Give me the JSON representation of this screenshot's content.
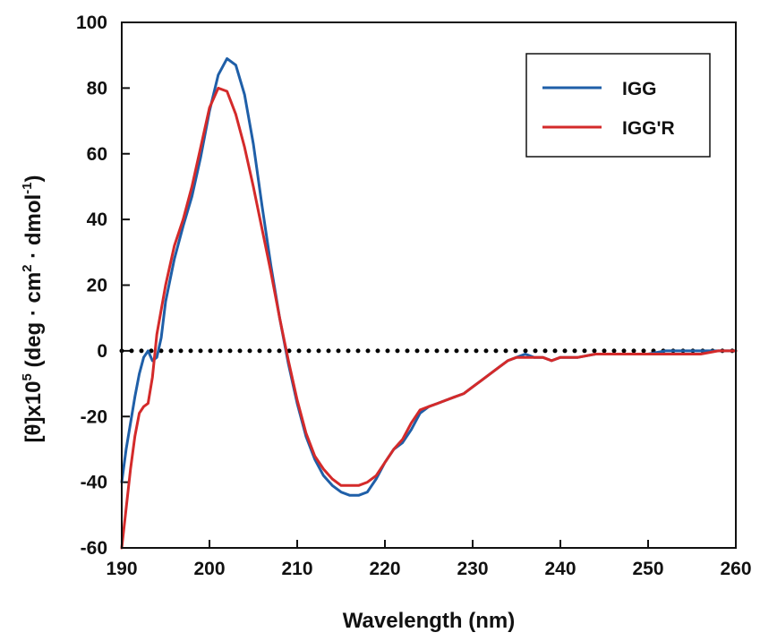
{
  "chart_data": {
    "type": "line",
    "xlabel": "Wavelength (nm)",
    "ylabel": {
      "prefix": "[θ]x10",
      "exp": "5",
      "part2": " (deg · cm",
      "exp2": "2",
      "part3": " · dmol",
      "exp3": "-1",
      "suffix": ")"
    },
    "xlim": [
      190,
      260
    ],
    "ylim": [
      -60,
      100
    ],
    "xticks": [
      "190",
      "200",
      "210",
      "220",
      "230",
      "240",
      "250",
      "260"
    ],
    "yticks": [
      "-60",
      "-40",
      "-20",
      "0",
      "20",
      "40",
      "60",
      "80",
      "100"
    ],
    "legend_position": "top-right",
    "reference_line": {
      "y": 0,
      "style": "dotted"
    },
    "series": [
      {
        "name": "IGG",
        "color": "#1f5fa8",
        "points": [
          [
            190,
            -40
          ],
          [
            190.5,
            -30
          ],
          [
            191,
            -22
          ],
          [
            191.5,
            -14
          ],
          [
            192,
            -7
          ],
          [
            192.5,
            -2
          ],
          [
            193,
            0
          ],
          [
            193.5,
            -3
          ],
          [
            194,
            -2
          ],
          [
            194.5,
            4
          ],
          [
            195,
            15
          ],
          [
            196,
            28
          ],
          [
            197,
            38
          ],
          [
            198,
            47
          ],
          [
            199,
            59
          ],
          [
            200,
            73
          ],
          [
            201,
            84
          ],
          [
            202,
            89
          ],
          [
            203,
            87
          ],
          [
            204,
            78
          ],
          [
            205,
            63
          ],
          [
            206,
            44
          ],
          [
            207,
            26
          ],
          [
            208,
            10
          ],
          [
            209,
            -4
          ],
          [
            210,
            -16
          ],
          [
            211,
            -26
          ],
          [
            212,
            -33
          ],
          [
            213,
            -38
          ],
          [
            214,
            -41
          ],
          [
            215,
            -43
          ],
          [
            216,
            -44
          ],
          [
            217,
            -44
          ],
          [
            218,
            -43
          ],
          [
            219,
            -39
          ],
          [
            220,
            -34
          ],
          [
            221,
            -30
          ],
          [
            222,
            -28
          ],
          [
            223,
            -24
          ],
          [
            224,
            -19
          ],
          [
            225,
            -17
          ],
          [
            226,
            -16
          ],
          [
            227,
            -15
          ],
          [
            228,
            -14
          ],
          [
            229,
            -13
          ],
          [
            230,
            -11
          ],
          [
            231,
            -9
          ],
          [
            232,
            -7
          ],
          [
            233,
            -5
          ],
          [
            234,
            -3
          ],
          [
            235,
            -2
          ],
          [
            236,
            -1
          ],
          [
            237,
            -2
          ],
          [
            238,
            -2
          ],
          [
            239,
            -3
          ],
          [
            240,
            -2
          ],
          [
            242,
            -2
          ],
          [
            244,
            -1
          ],
          [
            246,
            -1
          ],
          [
            248,
            -1
          ],
          [
            250,
            -1
          ],
          [
            252,
            0
          ],
          [
            254,
            0
          ],
          [
            256,
            0
          ],
          [
            258,
            0
          ],
          [
            260,
            0
          ]
        ]
      },
      {
        "name": "IGG'R",
        "color": "#d42a2a",
        "points": [
          [
            190,
            -60
          ],
          [
            190.5,
            -48
          ],
          [
            191,
            -36
          ],
          [
            191.5,
            -26
          ],
          [
            192,
            -19
          ],
          [
            192.5,
            -17
          ],
          [
            193,
            -16
          ],
          [
            193.5,
            -8
          ],
          [
            194,
            5
          ],
          [
            195,
            20
          ],
          [
            196,
            32
          ],
          [
            197,
            40
          ],
          [
            198,
            50
          ],
          [
            199,
            62
          ],
          [
            200,
            74
          ],
          [
            201,
            80
          ],
          [
            202,
            79
          ],
          [
            203,
            72
          ],
          [
            204,
            62
          ],
          [
            205,
            50
          ],
          [
            206,
            37
          ],
          [
            207,
            24
          ],
          [
            208,
            10
          ],
          [
            209,
            -3
          ],
          [
            210,
            -15
          ],
          [
            211,
            -25
          ],
          [
            212,
            -32
          ],
          [
            213,
            -36
          ],
          [
            214,
            -39
          ],
          [
            215,
            -41
          ],
          [
            216,
            -41
          ],
          [
            217,
            -41
          ],
          [
            218,
            -40
          ],
          [
            219,
            -38
          ],
          [
            220,
            -34
          ],
          [
            221,
            -30
          ],
          [
            222,
            -27
          ],
          [
            223,
            -22
          ],
          [
            224,
            -18
          ],
          [
            225,
            -17
          ],
          [
            226,
            -16
          ],
          [
            227,
            -15
          ],
          [
            228,
            -14
          ],
          [
            229,
            -13
          ],
          [
            230,
            -11
          ],
          [
            231,
            -9
          ],
          [
            232,
            -7
          ],
          [
            233,
            -5
          ],
          [
            234,
            -3
          ],
          [
            235,
            -2
          ],
          [
            236,
            -2
          ],
          [
            237,
            -2
          ],
          [
            238,
            -2
          ],
          [
            239,
            -3
          ],
          [
            240,
            -2
          ],
          [
            242,
            -2
          ],
          [
            244,
            -1
          ],
          [
            246,
            -1
          ],
          [
            248,
            -1
          ],
          [
            250,
            -1
          ],
          [
            252,
            -1
          ],
          [
            254,
            -1
          ],
          [
            256,
            -1
          ],
          [
            258,
            0
          ],
          [
            260,
            0
          ]
        ]
      }
    ]
  }
}
